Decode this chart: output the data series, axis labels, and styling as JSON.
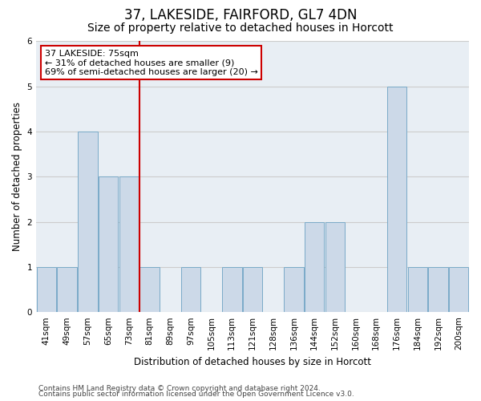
{
  "title": "37, LAKESIDE, FAIRFORD, GL7 4DN",
  "subtitle": "Size of property relative to detached houses in Horcott",
  "xlabel": "Distribution of detached houses by size in Horcott",
  "ylabel": "Number of detached properties",
  "categories": [
    "41sqm",
    "49sqm",
    "57sqm",
    "65sqm",
    "73sqm",
    "81sqm",
    "89sqm",
    "97sqm",
    "105sqm",
    "113sqm",
    "121sqm",
    "128sqm",
    "136sqm",
    "144sqm",
    "152sqm",
    "160sqm",
    "168sqm",
    "176sqm",
    "184sqm",
    "192sqm",
    "200sqm"
  ],
  "values": [
    1,
    1,
    4,
    3,
    3,
    1,
    0,
    1,
    0,
    1,
    1,
    0,
    1,
    2,
    2,
    0,
    0,
    5,
    1,
    1,
    1
  ],
  "bar_color": "#ccd9e8",
  "bar_edge_color": "#7aaac8",
  "vline_x_index": 4.5,
  "vline_color": "#cc0000",
  "annotation_text": "37 LAKESIDE: 75sqm\n← 31% of detached houses are smaller (9)\n69% of semi-detached houses are larger (20) →",
  "annotation_box_color": "#ffffff",
  "annotation_box_edge": "#cc0000",
  "ylim": [
    0,
    6
  ],
  "yticks": [
    0,
    1,
    2,
    3,
    4,
    5,
    6
  ],
  "grid_color": "#cccccc",
  "bg_color": "#e8eef4",
  "footer_line1": "Contains HM Land Registry data © Crown copyright and database right 2024.",
  "footer_line2": "Contains public sector information licensed under the Open Government Licence v3.0.",
  "title_fontsize": 12,
  "subtitle_fontsize": 10,
  "axis_label_fontsize": 8.5,
  "tick_fontsize": 7.5,
  "annotation_fontsize": 8,
  "footer_fontsize": 6.5
}
